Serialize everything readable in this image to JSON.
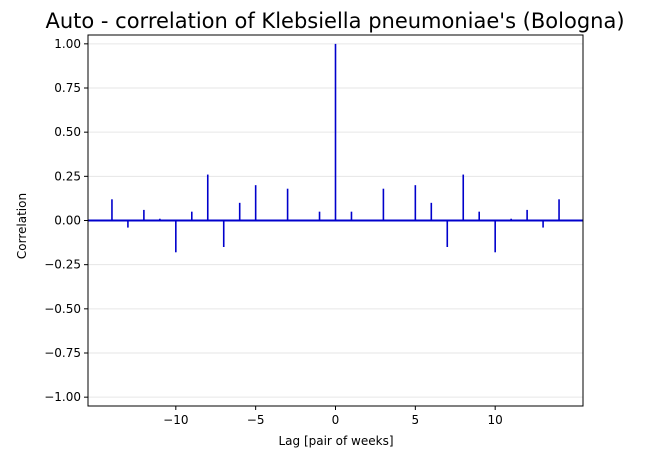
{
  "chart_data": {
    "type": "bar",
    "title": "Auto - correlation of Klebsiella pneumoniae's (Bologna)",
    "xlabel": "Lag [pair of weeks]",
    "ylabel": "Correlation",
    "xlim": [
      -15.5,
      15.5
    ],
    "ylim": [
      -1.05,
      1.05
    ],
    "xticks": [
      -10,
      -5,
      0,
      5,
      10
    ],
    "xtick_labels": [
      "−10",
      "−5",
      "0",
      "5",
      "10"
    ],
    "yticks": [
      -1.0,
      -0.75,
      -0.5,
      -0.25,
      0.0,
      0.25,
      0.5,
      0.75,
      1.0
    ],
    "ytick_labels": [
      "−1.00",
      "−0.75",
      "−0.50",
      "−0.25",
      "0.00",
      "0.25",
      "0.50",
      "0.75",
      "1.00"
    ],
    "grid": "horizontal",
    "line_color": "#0000cc",
    "x": [
      -14,
      -13,
      -12,
      -11,
      -10,
      -9,
      -8,
      -7,
      -6,
      -5,
      -4,
      -3,
      -2,
      -1,
      0,
      1,
      2,
      3,
      4,
      5,
      6,
      7,
      8,
      9,
      10,
      11,
      12,
      13,
      14
    ],
    "values": [
      0.12,
      -0.04,
      0.06,
      0.01,
      -0.18,
      0.05,
      0.26,
      -0.15,
      0.1,
      0.2,
      0.0,
      0.18,
      0.0,
      0.05,
      1.0,
      0.05,
      0.0,
      0.18,
      0.0,
      0.2,
      0.1,
      -0.15,
      0.26,
      0.05,
      -0.18,
      0.01,
      0.06,
      -0.04,
      0.12
    ]
  }
}
